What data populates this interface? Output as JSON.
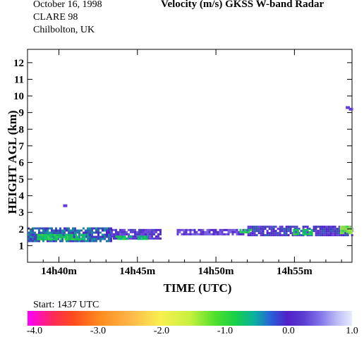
{
  "header": {
    "date": "October  16, 1998",
    "campaign": "CLARE 98",
    "location": "Chilbolton, UK",
    "title": "Velocity (m/s)    GKSS  W-band Radar"
  },
  "start_label": "Start: 1437 UTC",
  "colorbar": {
    "ticks": [
      "-4.0",
      "-3.0",
      "-2.0",
      "-1.0",
      "0.0",
      "1.0"
    ]
  },
  "chart_data": {
    "type": "heatmap",
    "title": "Velocity (m/s)    GKSS  W-band Radar",
    "xlabel": "TIME (UTC)",
    "ylabel": "HEIGHT AGL (km)",
    "xlim": [
      "14h38m",
      "14h58m40s"
    ],
    "ylim": [
      0,
      12.8
    ],
    "x_ticks": [
      "14h40m",
      "14h45m",
      "14h50m",
      "14h55m"
    ],
    "y_ticks": [
      "1",
      "2",
      "3",
      "4",
      "5",
      "6",
      "7",
      "8",
      "9",
      "10",
      "11",
      "12"
    ],
    "colorbar_range": [
      -4.0,
      1.0
    ],
    "cloud_layers": [
      {
        "start_min": 38.0,
        "end_min": 43.3,
        "base_km": 1.3,
        "top_km": 2.1,
        "velocity": -0.2
      },
      {
        "start_min": 43.3,
        "end_min": 46.5,
        "base_km": 1.4,
        "top_km": 2.0,
        "velocity": 0.1
      },
      {
        "start_min": 47.5,
        "end_min": 52.0,
        "base_km": 1.7,
        "top_km": 2.0,
        "velocity": 0.2
      },
      {
        "start_min": 52.0,
        "end_min": 58.7,
        "base_km": 1.6,
        "top_km": 2.2,
        "velocity": 0.0
      }
    ],
    "velocity_patches": [
      {
        "start_min": 38.6,
        "end_min": 41.6,
        "base_km": 1.4,
        "top_km": 1.7,
        "velocity": -0.9
      },
      {
        "start_min": 43.6,
        "end_min": 44.6,
        "base_km": 1.4,
        "top_km": 1.6,
        "velocity": -0.8
      },
      {
        "start_min": 45.0,
        "end_min": 45.6,
        "base_km": 1.4,
        "top_km": 1.6,
        "velocity": -0.8
      },
      {
        "start_min": 51.5,
        "end_min": 52.2,
        "base_km": 1.8,
        "top_km": 2.0,
        "velocity": -0.9
      },
      {
        "start_min": 54.9,
        "end_min": 55.3,
        "base_km": 1.7,
        "top_km": 2.0,
        "velocity": -1.0
      },
      {
        "start_min": 55.5,
        "end_min": 56.1,
        "base_km": 1.7,
        "top_km": 2.0,
        "velocity": -0.9
      },
      {
        "start_min": 57.9,
        "end_min": 58.7,
        "base_km": 1.8,
        "top_km": 2.2,
        "velocity": -1.4
      },
      {
        "start_min": 58.3,
        "end_min": 58.6,
        "base_km": 1.8,
        "top_km": 2.0,
        "velocity": -1.6
      }
    ],
    "isolated_echoes": [
      {
        "time_min": 40.4,
        "height_km": 3.4,
        "velocity": 0.2
      },
      {
        "time_min": 58.4,
        "height_km": 9.3,
        "velocity": 0.2
      },
      {
        "time_min": 58.6,
        "height_km": 9.2,
        "velocity": 0.2
      }
    ]
  }
}
